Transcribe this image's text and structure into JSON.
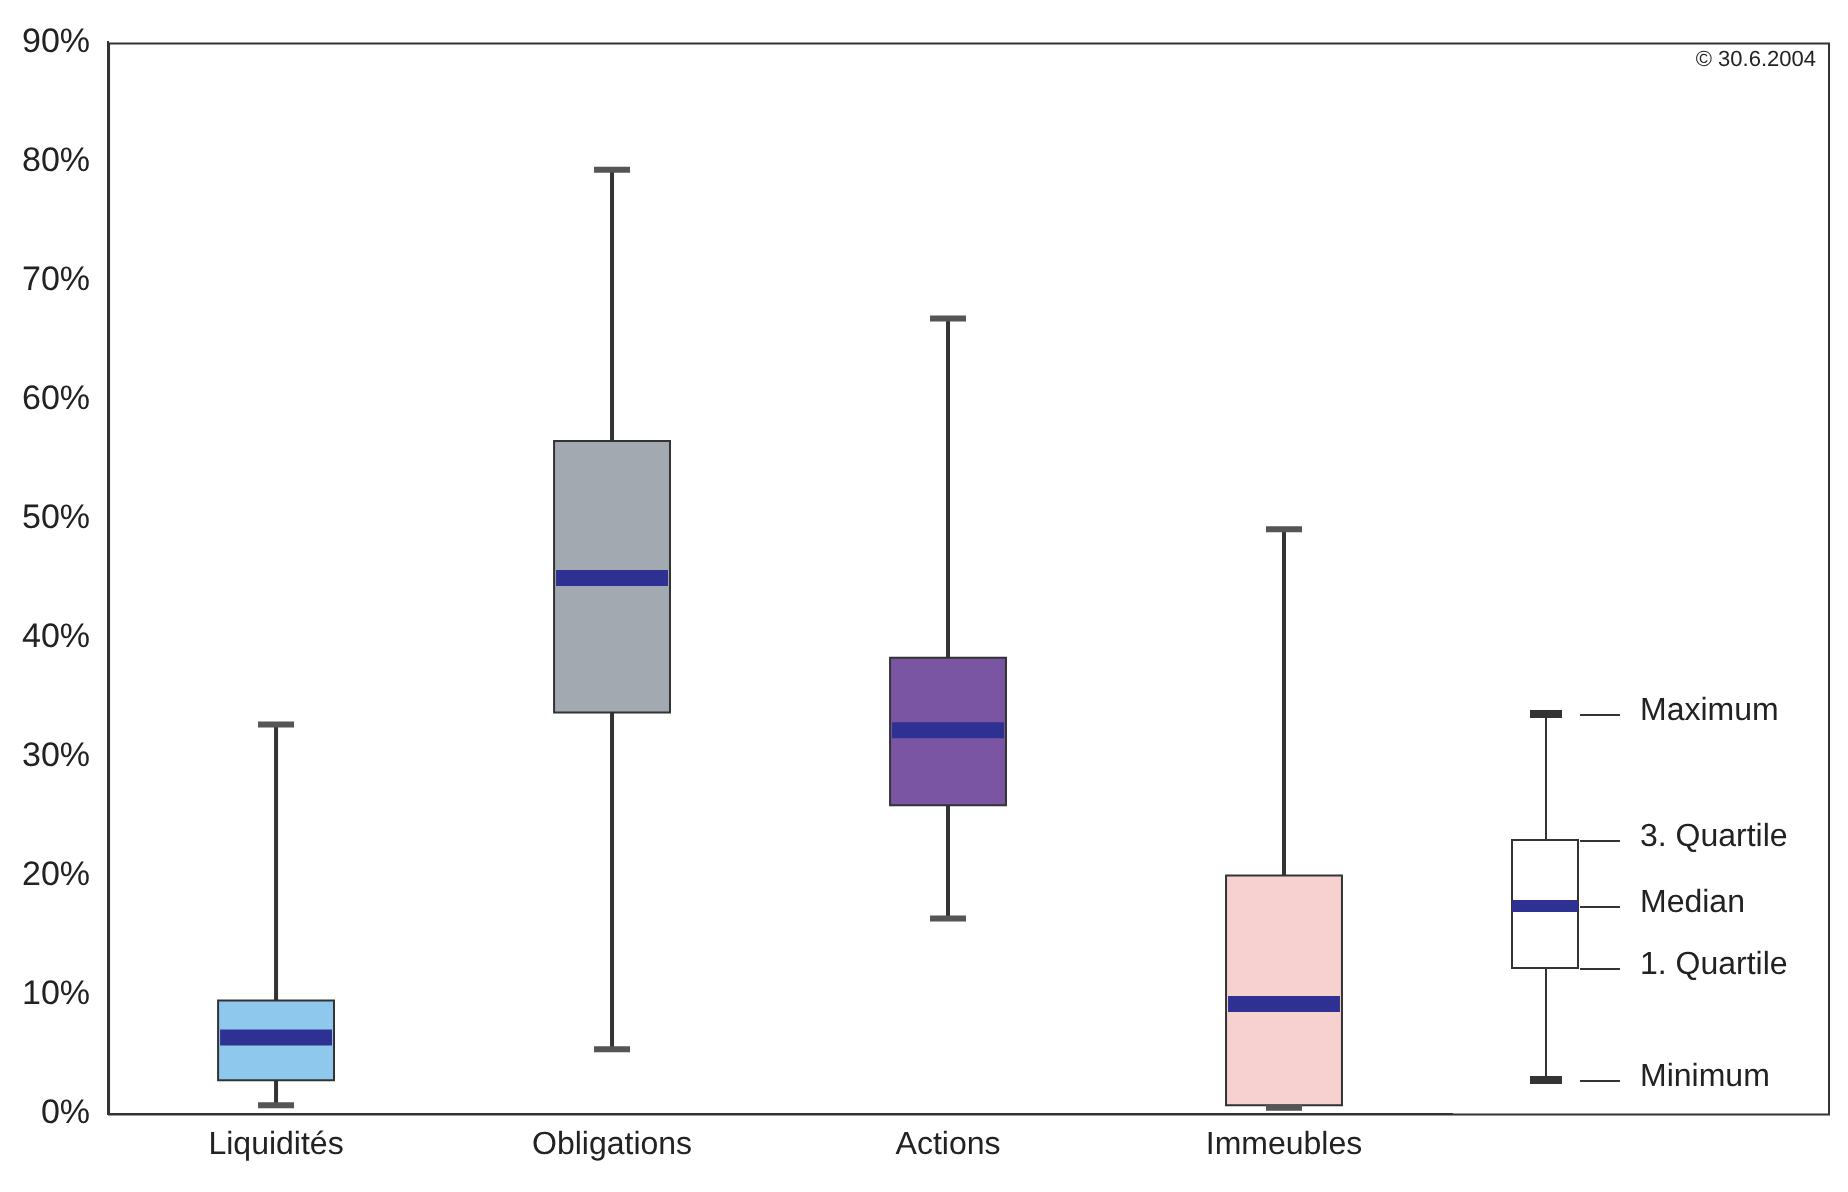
{
  "chart_data": {
    "type": "box",
    "categories": [
      "Liquidités",
      "Obligations",
      "Actions",
      "Immeubles"
    ],
    "colors": [
      "#8ec8ec",
      "#a3a9b0",
      "#7a55a3",
      "#f7d0d0"
    ],
    "boxes": [
      {
        "low": 0.7,
        "q1": 2.8,
        "median": 6.4,
        "q3": 9.5,
        "high": 32.7
      },
      {
        "low": 5.4,
        "q1": 33.7,
        "median": 45.0,
        "q3": 56.5,
        "high": 79.3
      },
      {
        "low": 16.4,
        "q1": 25.9,
        "median": 32.2,
        "q3": 38.3,
        "high": 66.8
      },
      {
        "low": 0.5,
        "q1": 0.7,
        "median": 9.2,
        "q3": 20.0,
        "high": 49.1
      }
    ],
    "ylim": [
      0,
      90
    ],
    "yticks": [
      {
        "value": 0,
        "label": "0%"
      },
      {
        "value": 10,
        "label": "10%"
      },
      {
        "value": 20,
        "label": "20%"
      },
      {
        "value": 30,
        "label": "30%"
      },
      {
        "value": 40,
        "label": "40%"
      },
      {
        "value": 50,
        "label": "50%"
      },
      {
        "value": 60,
        "label": "60%"
      },
      {
        "value": 70,
        "label": "70%"
      },
      {
        "value": 80,
        "label": "80%"
      },
      {
        "value": 90,
        "label": "90%"
      }
    ],
    "grid": false,
    "legend": false,
    "annotations": [
      "© 30.6.2004",
      "Maximum",
      "3. Quartile",
      "Median",
      "1. Quartile",
      "Minimum"
    ]
  }
}
